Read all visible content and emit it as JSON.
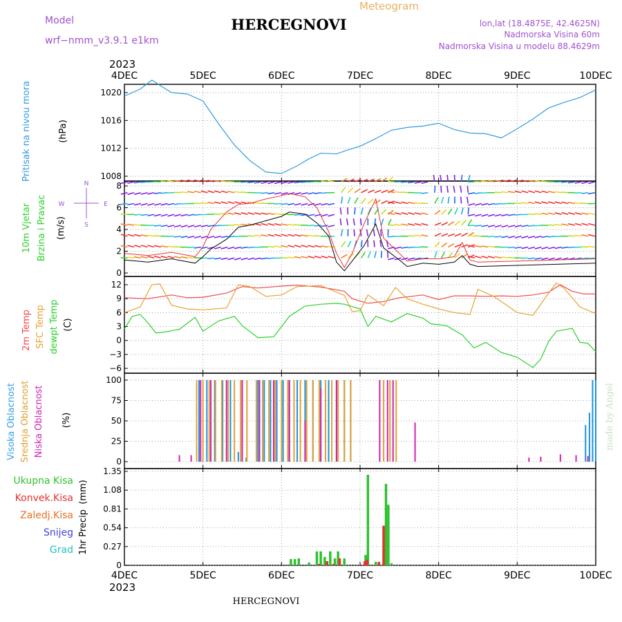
{
  "header": {
    "model_label": "Model",
    "model_name": "wrf−nmm_v3.9.1  e1km",
    "title": "HERCEGNOVI",
    "meteogram_label": "Meteogram",
    "lonlat": "lon,lat (18.4875E, 42.4625N)",
    "altitude": "Nadmorska Visina 60m",
    "model_altitude": "Nadmorska Visina u modelu 88.4629m",
    "footer_title": "HERCEGNOVI",
    "credit": "made by Angel",
    "year": "2023"
  },
  "colors": {
    "pressure": "#2f9be0",
    "wind_black": "#000000",
    "wind_red": "#e83030",
    "t2m": "#f04848",
    "sfc": "#e8a030",
    "dewpt": "#2ad02a",
    "high_cloud": "#1a90e0",
    "mid_cloud": "#e0a030",
    "low_cloud": "#d020b0",
    "total_precip": "#30c030",
    "conv_precip": "#e83030",
    "stratiform": "#e87020",
    "snow": "#4040e0",
    "hail": "#20c0c0",
    "grid": "#a0a0a0",
    "label_purple": "#a050d0",
    "label_orange": "#e8b060"
  },
  "chart_data": [
    {
      "type": "line",
      "panel": "pressure",
      "ylabel_parts": [
        "Pritisak na nivou mora",
        "(hPa)"
      ],
      "x_ticks": [
        "4DEC",
        "5DEC",
        "6DEC",
        "7DEC",
        "8DEC",
        "9DEC",
        "10DEC"
      ],
      "yticks": [
        1008,
        1012,
        1016,
        1020
      ],
      "ylim": [
        1007.5,
        1023
      ],
      "grid": true,
      "series": [
        {
          "color_key": "pressure",
          "x": [
            0,
            0.2,
            0.35,
            0.5,
            0.6,
            0.8,
            1.0,
            1.2,
            1.4,
            1.6,
            1.8,
            2.0,
            2.2,
            2.35,
            2.5,
            2.7,
            2.85,
            3.0,
            3.2,
            3.4,
            3.6,
            3.8,
            4.0,
            4.2,
            4.4,
            4.6,
            4.8,
            5.0,
            5.2,
            5.4,
            5.6,
            5.8,
            6.0
          ],
          "y": [
            1019.5,
            1020.5,
            1021.8,
            1020.7,
            1020.0,
            1019.8,
            1018.8,
            1015.5,
            1012.5,
            1010.2,
            1008.6,
            1008.4,
            1009.5,
            1010.5,
            1011.3,
            1011.2,
            1011.8,
            1012.3,
            1013.4,
            1014.6,
            1015.0,
            1015.2,
            1015.6,
            1014.7,
            1014.2,
            1014.1,
            1013.5,
            1014.8,
            1016.2,
            1017.8,
            1018.6,
            1019.3,
            1020.4
          ]
        }
      ]
    },
    {
      "type": "line",
      "panel": "wind",
      "ylabel_parts": [
        "10m Vjetar",
        "Brzina i Pravac",
        "(m/s)"
      ],
      "compass": [
        "N",
        "E",
        "S",
        "W"
      ],
      "x_ticks": [
        "4DEC",
        "5DEC",
        "6DEC",
        "7DEC",
        "8DEC",
        "9DEC",
        "10DEC"
      ],
      "yticks": [
        0,
        2,
        4,
        6,
        8
      ],
      "ylim": [
        -0.5,
        8.5
      ],
      "grid": true,
      "series": [
        {
          "color_key": "wind_black",
          "x": [
            0,
            0.3,
            0.6,
            0.9,
            1.0,
            1.1,
            1.3,
            1.45,
            1.6,
            1.8,
            2.0,
            2.1,
            2.3,
            2.45,
            2.6,
            2.7,
            2.8,
            2.9,
            3.05,
            3.2,
            3.3,
            3.5,
            3.6,
            3.8,
            4.0,
            4.2,
            4.3,
            4.4,
            4.5,
            5.0,
            5.5,
            6.0
          ],
          "y": [
            1.2,
            1.0,
            1.3,
            0.9,
            1.5,
            2.2,
            3.1,
            4.2,
            4.4,
            4.8,
            5.2,
            5.6,
            5.4,
            4.6,
            3.4,
            1.0,
            0.2,
            1.1,
            2.5,
            4.5,
            2.3,
            1.2,
            0.6,
            0.9,
            0.8,
            1.0,
            1.6,
            0.8,
            0.6,
            0.7,
            0.8,
            0.9
          ]
        },
        {
          "color_key": "wind_red",
          "x": [
            0,
            0.3,
            0.6,
            0.9,
            1.0,
            1.1,
            1.3,
            1.45,
            1.6,
            1.8,
            2.0,
            2.1,
            2.3,
            2.45,
            2.6,
            2.7,
            2.8,
            2.9,
            3.05,
            3.2,
            3.3,
            3.5,
            3.6,
            3.8,
            4.0,
            4.2,
            4.3,
            4.4,
            4.5,
            5.0,
            5.5,
            6.0
          ],
          "y": [
            1.8,
            1.6,
            1.9,
            1.5,
            2.4,
            4.0,
            5.6,
            6.3,
            6.4,
            6.8,
            7.1,
            7.3,
            7.0,
            6.0,
            3.8,
            1.8,
            0.5,
            1.8,
            4.5,
            6.8,
            3.2,
            1.8,
            1.1,
            1.3,
            1.3,
            1.5,
            2.8,
            1.2,
            1.0,
            1.1,
            1.2,
            1.3
          ]
        }
      ]
    },
    {
      "type": "line",
      "panel": "temperature",
      "ylabel_parts": [
        "2m Temp",
        "SFC Temp",
        "dewpt Temp",
        "(C)"
      ],
      "x_ticks": [
        "4DEC",
        "5DEC",
        "6DEC",
        "7DEC",
        "8DEC",
        "9DEC",
        "10DEC"
      ],
      "yticks": [
        -6,
        -3,
        0,
        3,
        6,
        9,
        12
      ],
      "ylim": [
        -7,
        13
      ],
      "grid": true,
      "series": [
        {
          "name": "2m Temp",
          "color_key": "t2m",
          "x": [
            0,
            0.3,
            0.6,
            0.8,
            1.0,
            1.3,
            1.5,
            1.7,
            2.0,
            2.2,
            2.5,
            2.8,
            2.9,
            3.1,
            3.3,
            3.5,
            3.8,
            4.0,
            4.2,
            4.4,
            4.6,
            4.8,
            5.0,
            5.2,
            5.4,
            5.55,
            5.7,
            5.85,
            6.0
          ],
          "y": [
            9.2,
            9.0,
            9.8,
            9.2,
            9.3,
            10.2,
            11.6,
            11.3,
            11.7,
            11.9,
            11.5,
            10.6,
            9.0,
            8.0,
            8.4,
            9.2,
            9.8,
            8.8,
            9.6,
            9.6,
            9.5,
            9.6,
            9.5,
            9.8,
            10.4,
            12.0,
            10.6,
            10.0,
            10.0
          ]
        },
        {
          "name": "SFC Temp",
          "color_key": "sfc",
          "x": [
            0,
            0.2,
            0.35,
            0.45,
            0.6,
            0.8,
            1.0,
            1.3,
            1.45,
            1.6,
            1.8,
            2.0,
            2.2,
            2.5,
            2.8,
            2.9,
            3.0,
            3.1,
            3.3,
            3.45,
            3.6,
            3.8,
            4.0,
            4.2,
            4.4,
            4.5,
            4.7,
            4.9,
            5.0,
            5.2,
            5.4,
            5.5,
            5.6,
            5.8,
            6.0
          ],
          "y": [
            6.0,
            7.2,
            12.0,
            12.2,
            7.6,
            6.8,
            6.6,
            7.0,
            12.0,
            11.6,
            9.5,
            9.8,
            11.6,
            11.8,
            9.7,
            6.2,
            6.4,
            9.8,
            7.5,
            11.4,
            9.0,
            7.8,
            6.8,
            6.0,
            5.6,
            11.0,
            9.5,
            7.2,
            6.0,
            5.4,
            10.2,
            12.4,
            11.2,
            7.2,
            5.8
          ]
        },
        {
          "name": "dewpt Temp",
          "color_key": "dewpt",
          "x": [
            0,
            0.1,
            0.2,
            0.3,
            0.4,
            0.5,
            0.7,
            0.9,
            1.0,
            1.2,
            1.4,
            1.5,
            1.7,
            1.9,
            2.1,
            2.3,
            2.5,
            2.7,
            2.8,
            3.0,
            3.1,
            3.2,
            3.4,
            3.6,
            3.8,
            3.9,
            4.1,
            4.3,
            4.45,
            4.6,
            4.8,
            5.0,
            5.2,
            5.3,
            5.4,
            5.5,
            5.7,
            5.8,
            5.9,
            6.0
          ],
          "y": [
            2.5,
            5.2,
            5.6,
            3.8,
            1.6,
            1.8,
            2.4,
            5.0,
            2.0,
            4.2,
            5.2,
            3.2,
            0.6,
            0.8,
            5.2,
            7.4,
            7.8,
            8.0,
            7.8,
            6.8,
            3.0,
            5.2,
            4.0,
            5.8,
            4.8,
            3.6,
            3.2,
            1.2,
            -1.6,
            -0.4,
            -2.6,
            -3.6,
            -5.8,
            -4.0,
            -0.2,
            2.0,
            2.6,
            -0.4,
            -0.6,
            -2.4
          ]
        }
      ]
    },
    {
      "type": "bar",
      "panel": "clouds",
      "ylabel_parts": [
        "Visoka Oblacnost",
        "Srednja Oblacnost",
        "Niska Oblacnost",
        "(%)"
      ],
      "x_ticks": [
        "4DEC",
        "5DEC",
        "6DEC",
        "7DEC",
        "8DEC",
        "9DEC",
        "10DEC"
      ],
      "yticks": [
        0,
        25,
        50,
        75,
        100
      ],
      "ylim": [
        0,
        105
      ],
      "grid": true,
      "series": [
        {
          "name": "Visoka Oblacnost",
          "color_key": "high_cloud",
          "x": [
            0.95,
            1.05,
            1.15,
            1.25,
            1.35,
            1.45,
            1.55,
            1.7,
            1.78,
            1.86,
            1.94,
            2.02,
            2.1,
            2.2,
            2.3,
            2.4,
            2.5,
            2.6,
            2.7,
            2.8,
            2.88,
            5.87,
            5.92,
            5.96,
            6.0
          ],
          "y": [
            100,
            100,
            100,
            100,
            100,
            12,
            5,
            100,
            100,
            100,
            100,
            100,
            100,
            100,
            100,
            100,
            100,
            100,
            100,
            100,
            100,
            45,
            60,
            100,
            100
          ]
        },
        {
          "name": "Srednja Oblacnost",
          "color_key": "mid_cloud",
          "x": [
            0.92,
            1.0,
            1.08,
            1.16,
            1.24,
            1.32,
            1.4,
            1.48,
            1.56,
            1.68,
            1.76,
            1.84,
            1.92,
            2.0,
            2.08,
            2.16,
            2.24,
            2.32,
            2.4,
            2.48,
            2.56,
            2.64,
            2.72,
            2.8,
            2.88,
            3.3,
            3.38,
            3.46
          ],
          "y": [
            100,
            100,
            100,
            100,
            100,
            100,
            100,
            100,
            100,
            100,
            100,
            100,
            100,
            100,
            100,
            100,
            100,
            100,
            100,
            100,
            100,
            100,
            100,
            100,
            100,
            100,
            100,
            100
          ]
        },
        {
          "name": "Niska Oblacnost",
          "color_key": "low_cloud",
          "x": [
            0.7,
            0.85,
            0.97,
            1.1,
            1.3,
            1.5,
            1.72,
            1.9,
            2.1,
            2.3,
            2.5,
            2.7,
            3.25,
            3.35,
            3.42,
            3.7,
            5.15,
            5.3,
            5.55,
            5.75,
            5.9
          ],
          "y": [
            8,
            8,
            100,
            100,
            100,
            100,
            100,
            100,
            100,
            50,
            90,
            100,
            100,
            100,
            100,
            48,
            5,
            6,
            9,
            8,
            7
          ]
        }
      ]
    },
    {
      "type": "bar",
      "panel": "precip",
      "ylabel_parts": [
        "1hr Precip",
        "(mm)"
      ],
      "legend": [
        "Ukupna Kisa",
        "Konvek.Kisa",
        "Zaledj.Kisa",
        "Snijeg",
        "Grad"
      ],
      "x_ticks": [
        "4DEC",
        "5DEC",
        "6DEC",
        "7DEC",
        "8DEC",
        "9DEC",
        "10DEC"
      ],
      "yticks": [
        0,
        0.27,
        0.54,
        0.81,
        1.08,
        1.35
      ],
      "ylim": [
        0,
        1.35
      ],
      "grid": true,
      "series": [
        {
          "name": "Ukupna Kisa",
          "color_key": "total_precip",
          "x": [
            2.12,
            2.17,
            2.22,
            2.35,
            2.45,
            2.5,
            2.55,
            2.62,
            2.68,
            2.72,
            2.8,
            3.07,
            3.1,
            3.2,
            3.3,
            3.33,
            3.36,
            3.4
          ],
          "y": [
            0.09,
            0.09,
            0.1,
            0.04,
            0.2,
            0.2,
            0.12,
            0.2,
            0.1,
            0.2,
            0.1,
            0.15,
            1.3,
            0.05,
            0.55,
            1.17,
            0.87,
            0.03
          ]
        },
        {
          "name": "Konvek.Kisa",
          "color_key": "conv_precip",
          "x": [
            2.48,
            2.58,
            2.66,
            2.74,
            3.06,
            3.09,
            3.24,
            3.3
          ],
          "y": [
            0.02,
            0.06,
            0.02,
            0.1,
            0.06,
            0.08,
            0.05,
            0.57
          ]
        }
      ]
    }
  ]
}
